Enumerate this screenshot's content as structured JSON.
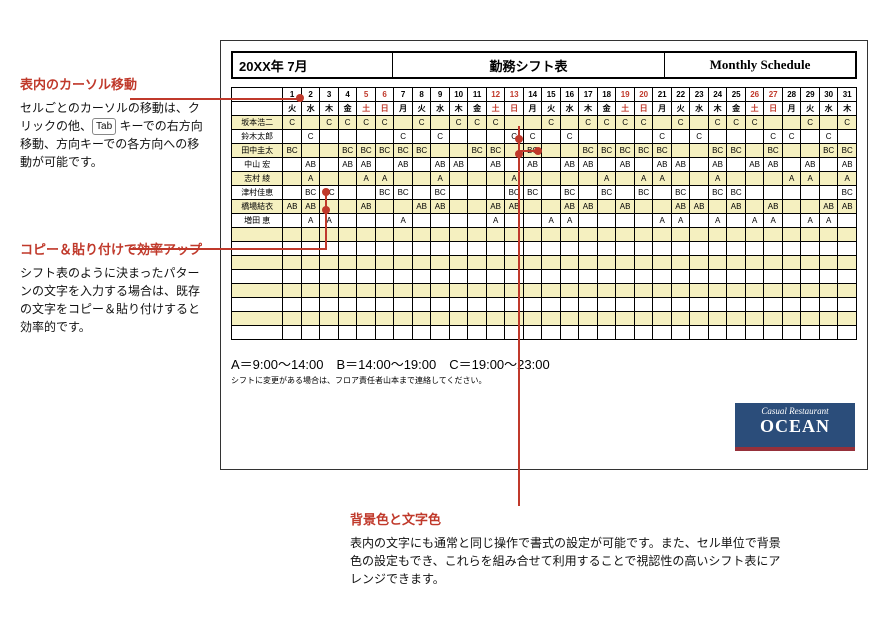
{
  "header": {
    "date": "20XX年 7月",
    "title": "勤務シフト表",
    "eng": "Monthly Schedule"
  },
  "days": [
    {
      "d": "1",
      "w": "火"
    },
    {
      "d": "2",
      "w": "水"
    },
    {
      "d": "3",
      "w": "木"
    },
    {
      "d": "4",
      "w": "金"
    },
    {
      "d": "5",
      "w": "土",
      "wk": 1
    },
    {
      "d": "6",
      "w": "日",
      "wk": 1
    },
    {
      "d": "7",
      "w": "月"
    },
    {
      "d": "8",
      "w": "火"
    },
    {
      "d": "9",
      "w": "水"
    },
    {
      "d": "10",
      "w": "木"
    },
    {
      "d": "11",
      "w": "金"
    },
    {
      "d": "12",
      "w": "土",
      "wk": 1
    },
    {
      "d": "13",
      "w": "日",
      "wk": 1
    },
    {
      "d": "14",
      "w": "月"
    },
    {
      "d": "15",
      "w": "火"
    },
    {
      "d": "16",
      "w": "水"
    },
    {
      "d": "17",
      "w": "木"
    },
    {
      "d": "18",
      "w": "金"
    },
    {
      "d": "19",
      "w": "土",
      "wk": 1
    },
    {
      "d": "20",
      "w": "日",
      "wk": 1
    },
    {
      "d": "21",
      "w": "月"
    },
    {
      "d": "22",
      "w": "火"
    },
    {
      "d": "23",
      "w": "水"
    },
    {
      "d": "24",
      "w": "木"
    },
    {
      "d": "25",
      "w": "金"
    },
    {
      "d": "26",
      "w": "土",
      "wk": 1
    },
    {
      "d": "27",
      "w": "日",
      "wk": 1
    },
    {
      "d": "28",
      "w": "月"
    },
    {
      "d": "29",
      "w": "火"
    },
    {
      "d": "30",
      "w": "水"
    },
    {
      "d": "31",
      "w": "木"
    }
  ],
  "rows": [
    {
      "name": "坂本浩二",
      "s": [
        "C",
        "",
        "C",
        "C",
        "C",
        "C",
        "",
        "C",
        "",
        "C",
        "C",
        "C",
        "",
        "",
        "C",
        "",
        "C",
        "C",
        "C",
        "C",
        "",
        "C",
        "",
        "C",
        "C",
        "C",
        "",
        "",
        "C",
        "",
        "C"
      ],
      "striped": true
    },
    {
      "name": "鈴木太郎",
      "s": [
        "",
        "C",
        "",
        "",
        "",
        "",
        "C",
        "",
        "C",
        "",
        "",
        "",
        "C",
        "C",
        "",
        "C",
        "",
        "",
        "",
        "",
        "C",
        "",
        "C",
        "",
        "",
        "",
        "C",
        "C",
        "",
        "C",
        ""
      ]
    },
    {
      "name": "田中圭太",
      "s": [
        "BC",
        "",
        "",
        "BC",
        "BC",
        "BC",
        "BC",
        "BC",
        "",
        "",
        "BC",
        "BC",
        "",
        "BC",
        "",
        "",
        "BC",
        "BC",
        "BC",
        "BC",
        "BC",
        "",
        "",
        "BC",
        "BC",
        "",
        "BC",
        "",
        "",
        "BC",
        "BC"
      ],
      "striped": true
    },
    {
      "name": "中山 宏",
      "s": [
        "",
        "AB",
        "",
        "AB",
        "AB",
        "",
        "AB",
        "",
        "AB",
        "AB",
        "",
        "AB",
        "",
        "AB",
        "",
        "AB",
        "AB",
        "",
        "AB",
        "",
        "AB",
        "AB",
        "",
        "AB",
        "",
        "AB",
        "AB",
        "",
        "AB",
        "",
        "AB"
      ]
    },
    {
      "name": "志村 綾",
      "s": [
        "",
        "A",
        "",
        "",
        "A",
        "A",
        "",
        "",
        "A",
        "",
        "",
        "",
        "A",
        "",
        "",
        "",
        "",
        "A",
        "",
        "A",
        "A",
        "",
        "",
        "A",
        "",
        "",
        "",
        "A",
        "A",
        "",
        "A"
      ],
      "striped": true
    },
    {
      "name": "津村佳恵",
      "s": [
        "",
        "BC",
        "BC",
        "",
        "",
        "BC",
        "BC",
        "",
        "BC",
        "",
        "",
        "",
        "BC",
        "BC",
        "",
        "BC",
        "",
        "BC",
        "",
        "BC",
        "",
        "BC",
        "",
        "BC",
        "BC",
        "",
        "",
        "",
        "",
        "",
        "BC"
      ]
    },
    {
      "name": "橋場結衣",
      "s": [
        "AB",
        "AB",
        "",
        "",
        "AB",
        "",
        "",
        "AB",
        "AB",
        "",
        "",
        "AB",
        "AB",
        "",
        "",
        "AB",
        "AB",
        "",
        "AB",
        "",
        "",
        "AB",
        "AB",
        "",
        "AB",
        "",
        "AB",
        "",
        "",
        "AB",
        "AB"
      ],
      "striped": true
    },
    {
      "name": "増田 恵",
      "s": [
        "",
        "A",
        "A",
        "",
        "",
        "",
        "A",
        "",
        "",
        "",
        "",
        "A",
        "",
        "",
        "A",
        "A",
        "",
        "",
        "",
        "",
        "A",
        "A",
        "",
        "A",
        "",
        "A",
        "A",
        "",
        "A",
        "A",
        ""
      ]
    }
  ],
  "blanks": 8,
  "legend": {
    "text": "A＝9:00～14:00　B＝14:00～19:00　C＝19:00～23:00",
    "note": "シフトに変更がある場合は、フロア責任者山本まで連絡してください。"
  },
  "logo": {
    "line1": "Casual Restaurant",
    "line2": "OCEAN"
  },
  "annos": {
    "a1": {
      "title": "表内のカーソル移動",
      "body1": "セルごとのカーソルの移動は、クリックの他、",
      "kbd": "Tab",
      "body2": " キーでの右方向移動、方向キーでの各方向への移動が可能です。"
    },
    "a2": {
      "title": "コピー＆貼り付けで効率アップ",
      "body": "シフト表のように決まったパターンの文字を入力する場合は、既存の文字をコピー＆貼り付けすると効率的です。"
    },
    "a3": {
      "title": "背景色と文字色",
      "body": "表内の文字にも通常と同じ操作で書式の設定が可能です。また、セル単位で背景色の設定もでき、これらを組み合せて利用することで視認性の高いシフト表にアレンジできます。"
    }
  }
}
